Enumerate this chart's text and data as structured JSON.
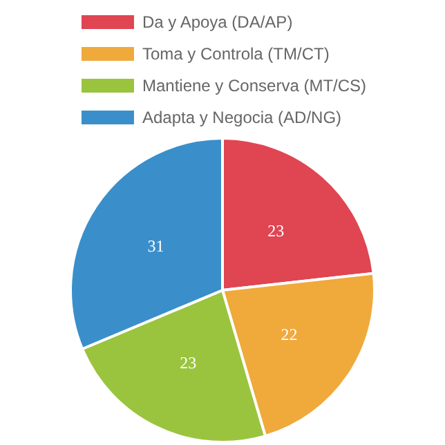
{
  "chart_data": {
    "type": "pie",
    "categories": [
      "Da y Apoya (DA/AP)",
      "Toma y Controla (TM/CT)",
      "Mantiene y Conserva (MT/CS)",
      "Adapta y Negocia (AD/NG)"
    ],
    "values": [
      23,
      22,
      23,
      31
    ],
    "colors": [
      "#e04552",
      "#f0a93b",
      "#9ac43e",
      "#3a8fcb"
    ],
    "data_labels": true,
    "legend": "top"
  }
}
